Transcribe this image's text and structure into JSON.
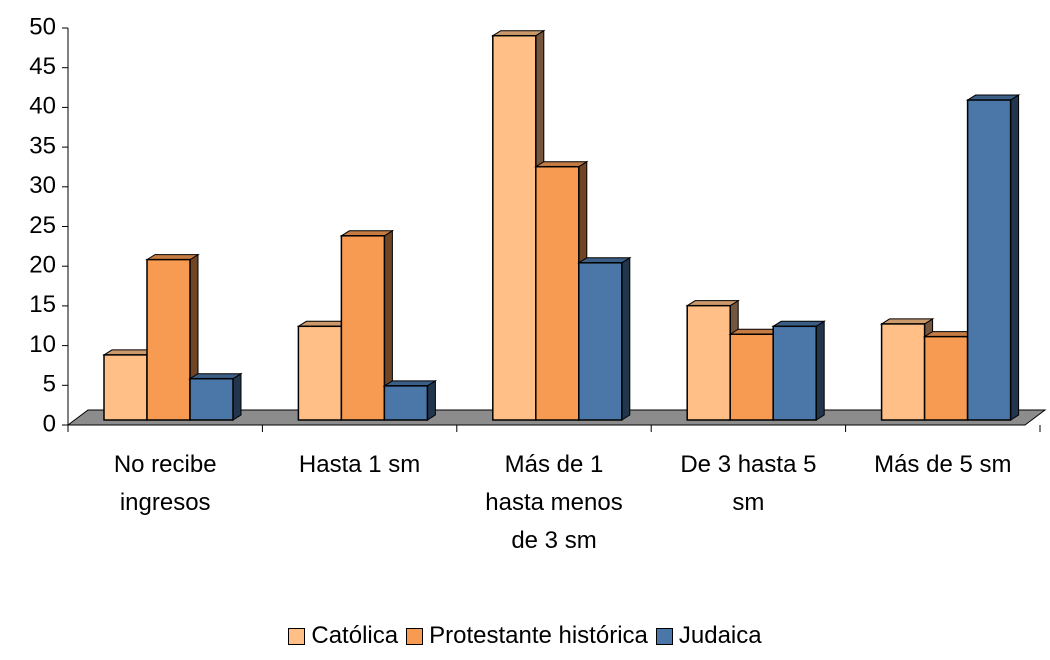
{
  "chart_data": {
    "type": "bar3d",
    "categories": [
      "No recibe ingresos",
      "Hasta 1 sm",
      "Más de 1 hasta menos de 3 sm",
      "De 3 hasta 5 sm",
      "Más de 5 sm"
    ],
    "series": [
      {
        "name": "Católica",
        "color": "#ffbf86",
        "values": [
          8.2,
          11.8,
          48.4,
          14.4,
          12.1
        ]
      },
      {
        "name": "Protestante histórica",
        "color": "#f79a52",
        "values": [
          20.2,
          23.2,
          31.9,
          10.8,
          10.5
        ]
      },
      {
        "name": "Judaica",
        "color": "#4a76a8",
        "values": [
          5.2,
          4.3,
          19.8,
          11.8,
          40.3
        ]
      }
    ],
    "ylim": [
      0,
      50
    ],
    "yticks": [
      0,
      5,
      10,
      15,
      20,
      25,
      30,
      35,
      40,
      45,
      50
    ]
  }
}
